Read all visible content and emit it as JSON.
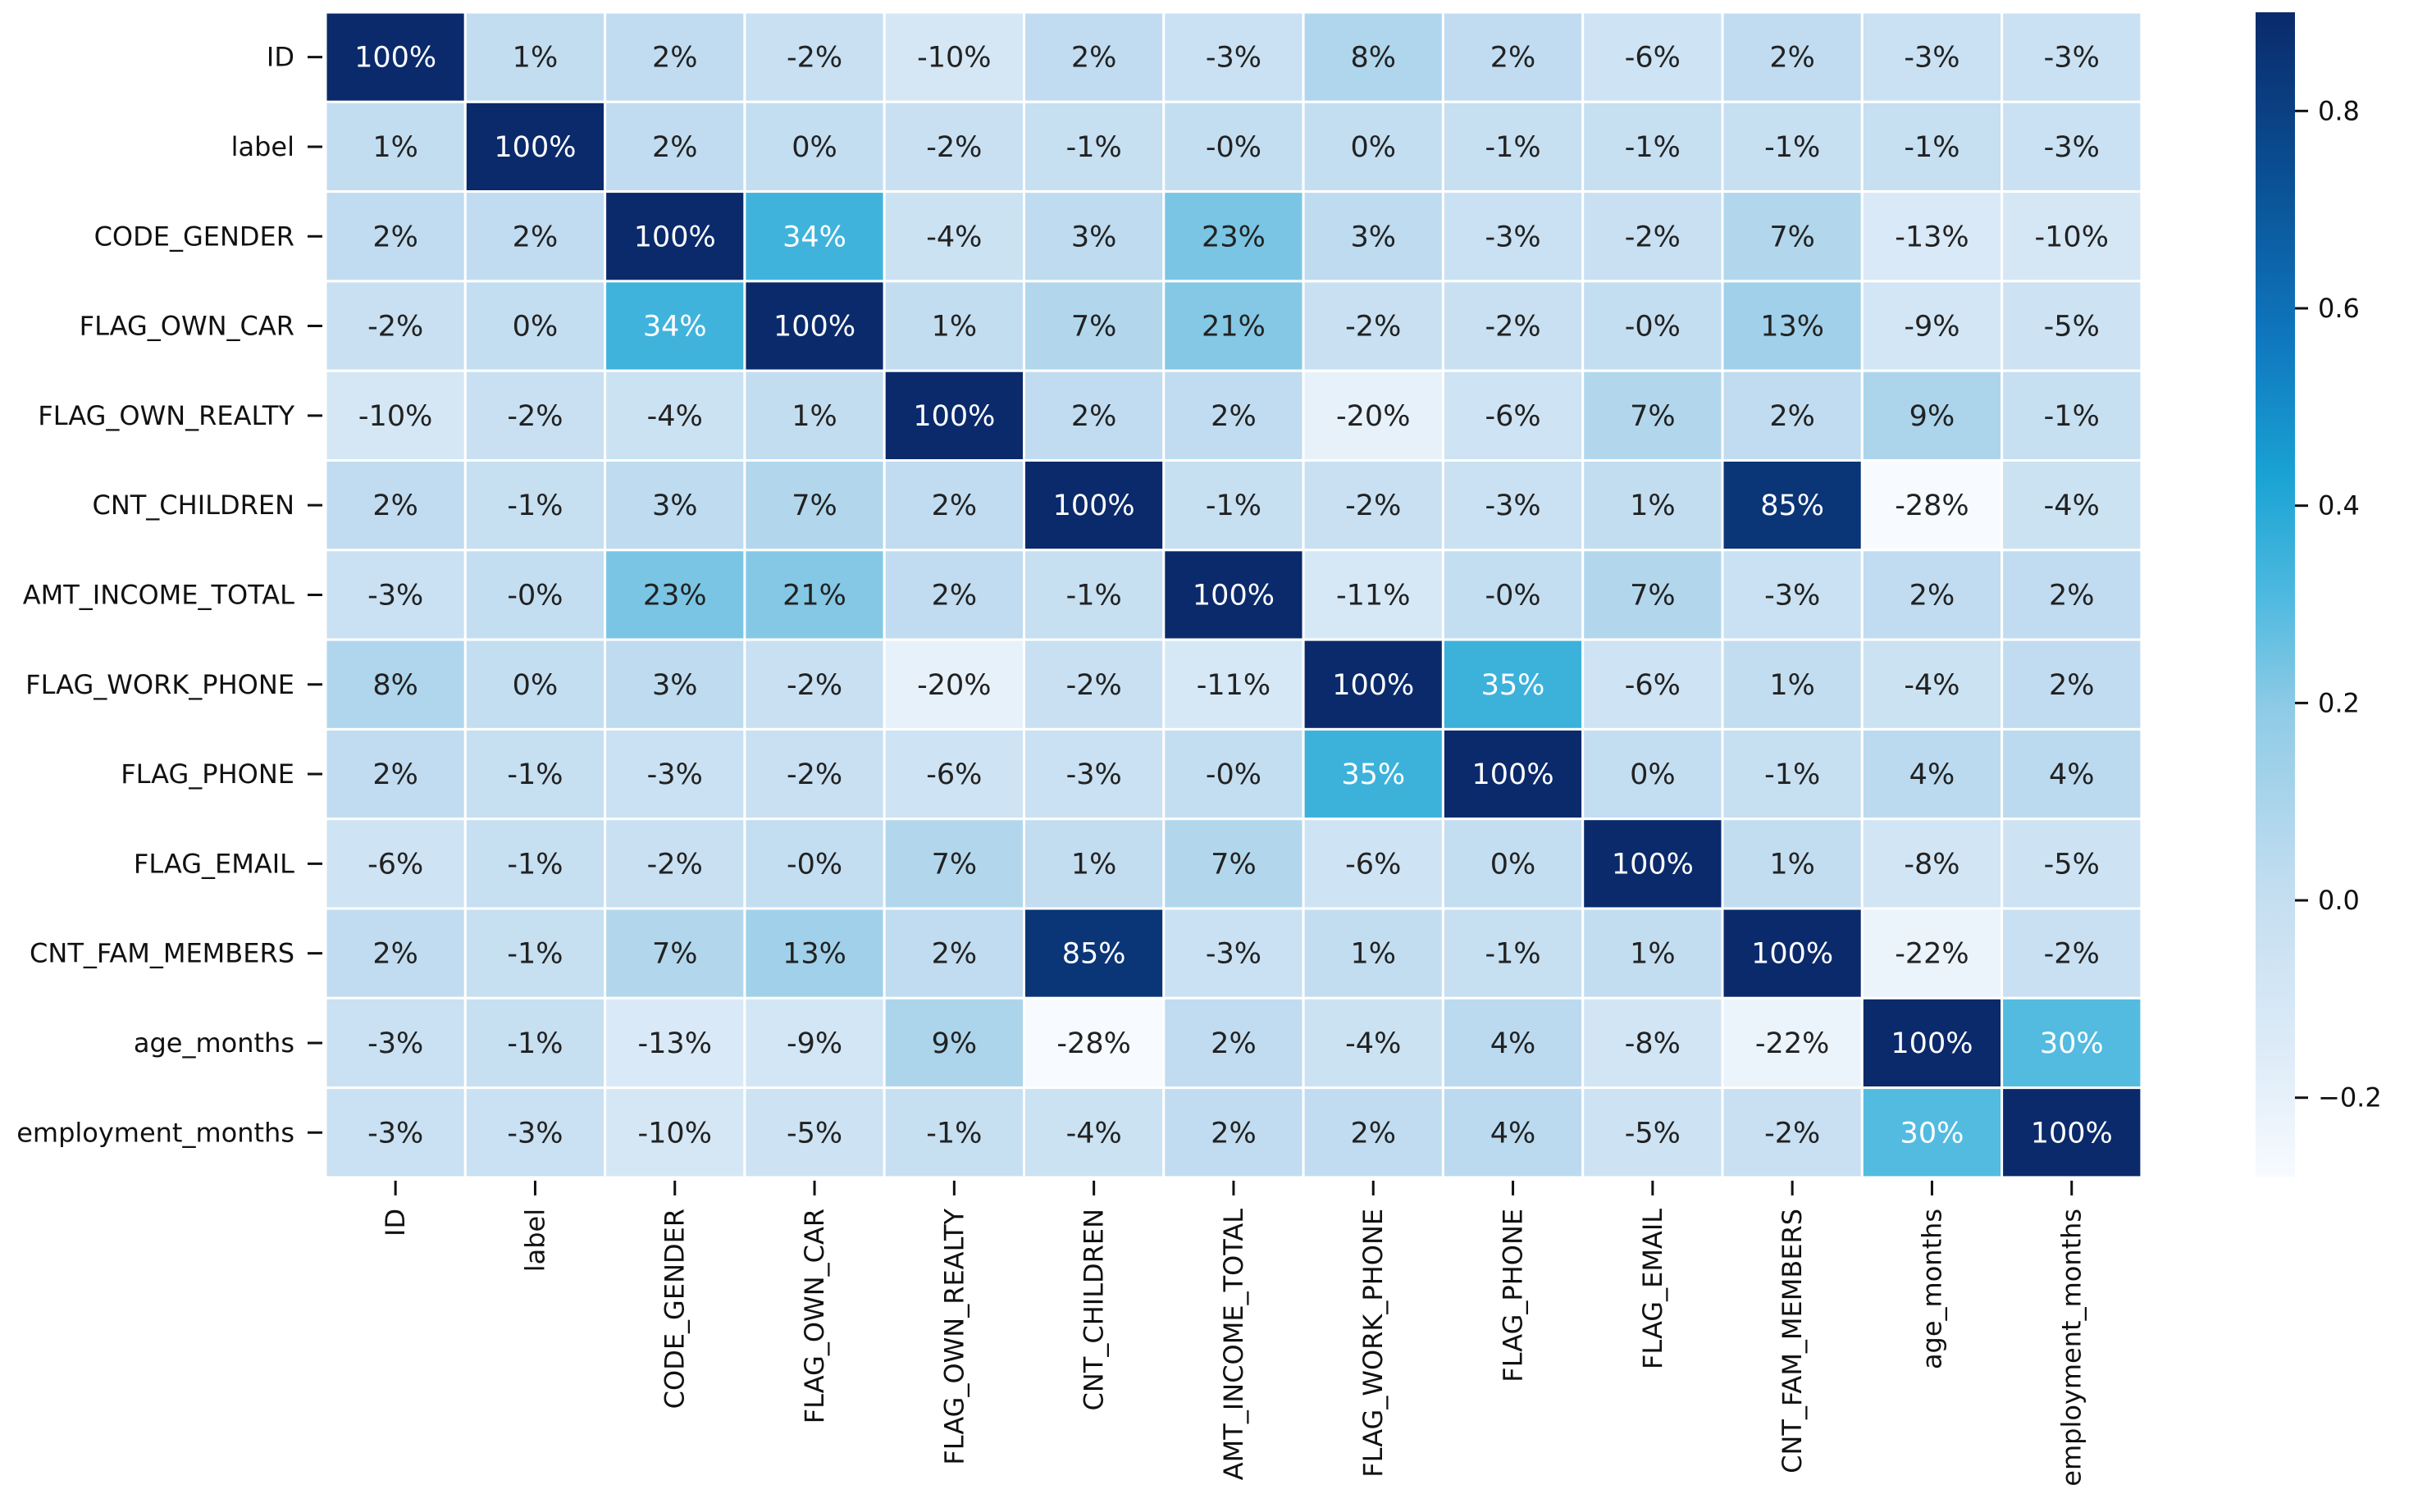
{
  "chart_data": {
    "type": "heatmap",
    "title": "",
    "xlabel": "",
    "ylabel": "",
    "labels": [
      "ID",
      "label",
      "CODE_GENDER",
      "FLAG_OWN_CAR",
      "FLAG_OWN_REALTY",
      "CNT_CHILDREN",
      "AMT_INCOME_TOTAL",
      "FLAG_WORK_PHONE",
      "FLAG_PHONE",
      "FLAG_EMAIL",
      "CNT_FAM_MEMBERS",
      "age_months",
      "employment_months"
    ],
    "values": [
      [
        100,
        1,
        2,
        -2,
        -10,
        2,
        -3,
        8,
        2,
        -6,
        2,
        -3,
        -3
      ],
      [
        1,
        100,
        2,
        0,
        -2,
        -1,
        0,
        0,
        -1,
        -1,
        -1,
        -1,
        -3
      ],
      [
        2,
        2,
        100,
        34,
        -4,
        3,
        23,
        3,
        -3,
        -2,
        7,
        -13,
        -10
      ],
      [
        -2,
        0,
        34,
        100,
        1,
        7,
        21,
        -2,
        -2,
        0,
        13,
        -9,
        -5
      ],
      [
        -10,
        -2,
        -4,
        1,
        100,
        2,
        2,
        -20,
        -6,
        7,
        2,
        9,
        -1
      ],
      [
        2,
        -1,
        3,
        7,
        2,
        100,
        -1,
        -2,
        -3,
        1,
        85,
        -28,
        -4
      ],
      [
        -3,
        0,
        23,
        21,
        2,
        -1,
        100,
        -11,
        0,
        7,
        -3,
        2,
        2
      ],
      [
        8,
        0,
        3,
        -2,
        -20,
        -2,
        -11,
        100,
        35,
        -6,
        1,
        -4,
        2
      ],
      [
        2,
        -1,
        -3,
        -2,
        -6,
        -3,
        0,
        35,
        100,
        0,
        -1,
        4,
        4
      ],
      [
        -6,
        -1,
        -2,
        0,
        7,
        1,
        7,
        -6,
        0,
        100,
        1,
        -8,
        -5
      ],
      [
        2,
        -1,
        7,
        13,
        2,
        85,
        -3,
        1,
        -1,
        1,
        100,
        -22,
        -2
      ],
      [
        -3,
        -1,
        -13,
        -9,
        9,
        -28,
        2,
        -4,
        4,
        -8,
        -22,
        100,
        30
      ],
      [
        -3,
        -3,
        -10,
        -5,
        -1,
        -4,
        2,
        2,
        4,
        -5,
        -2,
        30,
        100
      ]
    ],
    "value_format": "percent",
    "colormap": "Blues",
    "colorbar": {
      "vmin": -0.28,
      "vmax": 0.9,
      "ticks": [
        "0.8",
        "0.6",
        "0.4",
        "0.2",
        "0.0",
        "−0.2"
      ],
      "tick_values": [
        0.8,
        0.6,
        0.4,
        0.2,
        0.0,
        -0.2
      ],
      "placement": "right"
    }
  }
}
